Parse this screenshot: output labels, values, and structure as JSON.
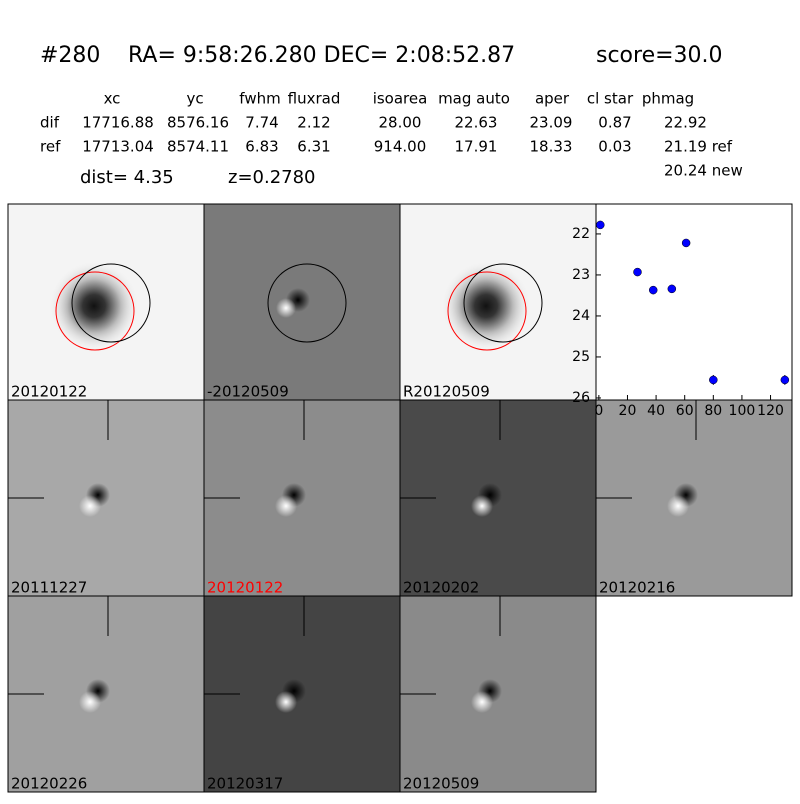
{
  "header": {
    "id": "#280",
    "coords": "RA= 9:58:26.280 DEC= 2:08:52.87",
    "score": "score=30.0"
  },
  "table": {
    "columns": [
      "xc",
      "yc",
      "fwhm",
      "fluxrad",
      "isoarea",
      "mag auto",
      "aper",
      "cl star",
      "phmag"
    ],
    "rows": [
      [
        "dif",
        "17716.88",
        "8576.16",
        "7.74",
        "2.12",
        "28.00",
        "22.63",
        "23.09",
        "0.87",
        "22.92"
      ],
      [
        "ref",
        "17713.04",
        "8574.11",
        "6.83",
        "6.31",
        "914.00",
        "17.91",
        "18.33",
        "0.03",
        "21.19 ref"
      ]
    ],
    "extra": "20.24 new"
  },
  "dist": "dist=  4.35",
  "redshift": "z=0.2780",
  "panels": [
    {
      "label": "20120122"
    },
    {
      "label": "-20120509"
    },
    {
      "label": "R20120509"
    },
    {
      "label": "20111227"
    },
    {
      "label": "20120122",
      "label_color": "#ff0000"
    },
    {
      "label": "20120202"
    },
    {
      "label": "20120216"
    },
    {
      "label": "20120226"
    },
    {
      "label": "20120317"
    },
    {
      "label": "20120509"
    }
  ],
  "chart_data": {
    "type": "scatter",
    "x": [
      1,
      27,
      38,
      51,
      61,
      80,
      130
    ],
    "y": [
      21.78,
      22.93,
      23.37,
      23.34,
      22.22,
      25.56,
      25.56
    ],
    "yerr": [
      0.05,
      0.06,
      0.1,
      0.1,
      0.06,
      0.12,
      0.12
    ],
    "color": "#0000ff",
    "xlim": [
      -2,
      135
    ],
    "ylim": [
      26.05,
      21.27
    ],
    "xticks": [
      0,
      20,
      40,
      60,
      80,
      100,
      120
    ],
    "yticks": [
      22,
      23,
      24,
      25,
      26
    ]
  }
}
